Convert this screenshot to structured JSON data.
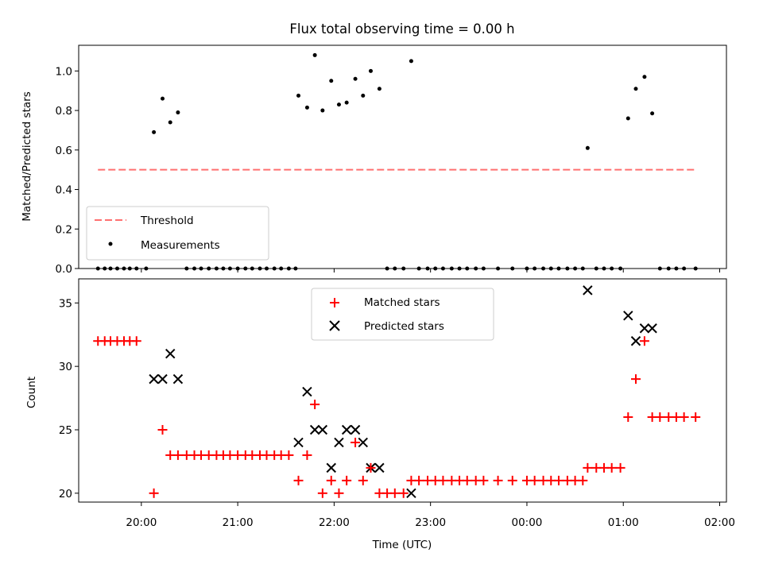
{
  "figure": {
    "title": "Flux total observing time = 0.00 h"
  },
  "chart_data": [
    {
      "type": "scatter",
      "ylabel": "Matched/Predicted stars",
      "xlim_hours": [
        19.35,
        26.07
      ],
      "ylim": [
        0,
        1.13
      ],
      "yticks": [
        "0.0",
        "0.2",
        "0.4",
        "0.6",
        "0.8",
        "1.0"
      ],
      "grid": false,
      "legend_position": "lower-left",
      "threshold": {
        "name": "Threshold",
        "color": "#ff7070",
        "x": [
          19.55,
          25.75
        ],
        "y": 0.5
      },
      "measurements": {
        "name": "Measurements",
        "color": "#000000",
        "x": [
          19.55,
          19.62,
          19.68,
          19.75,
          19.82,
          19.88,
          19.95,
          20.05,
          20.13,
          20.22,
          20.3,
          20.38,
          20.47,
          20.55,
          20.62,
          20.7,
          20.78,
          20.85,
          20.92,
          21.0,
          21.08,
          21.15,
          21.23,
          21.3,
          21.38,
          21.45,
          21.53,
          21.6,
          21.63,
          21.72,
          21.8,
          21.88,
          21.97,
          22.05,
          22.13,
          22.22,
          22.3,
          22.38,
          22.47,
          22.55,
          22.63,
          22.72,
          22.8,
          22.88,
          22.97,
          23.05,
          23.13,
          23.22,
          23.3,
          23.38,
          23.47,
          23.55,
          23.7,
          23.85,
          24.0,
          24.08,
          24.17,
          24.25,
          24.33,
          24.42,
          24.5,
          24.58,
          24.63,
          24.72,
          24.8,
          24.88,
          24.97,
          25.05,
          25.13,
          25.22,
          25.3,
          25.38,
          25.47,
          25.55,
          25.63,
          25.75
        ],
        "y": [
          0,
          0,
          0,
          0,
          0,
          0,
          0,
          0,
          0.69,
          0.86,
          0.74,
          0.79,
          0,
          0,
          0,
          0,
          0,
          0,
          0,
          0,
          0,
          0,
          0,
          0,
          0,
          0,
          0,
          0,
          0.875,
          0.815,
          1.08,
          0.8,
          0.95,
          0.83,
          0.84,
          0.96,
          0.875,
          1.0,
          0.91,
          0,
          0,
          0,
          1.05,
          0,
          0,
          0,
          0,
          0,
          0,
          0,
          0,
          0,
          0,
          0,
          0,
          0,
          0,
          0,
          0,
          0,
          0,
          0,
          0.61,
          0,
          0,
          0,
          0,
          0.76,
          0.91,
          0.97,
          0.785,
          0,
          0,
          0,
          0,
          0
        ]
      }
    },
    {
      "type": "scatter",
      "ylabel": "Count",
      "xlabel": "Time (UTC)",
      "xlim_hours": [
        19.35,
        26.07
      ],
      "ylim": [
        19.3,
        36.9
      ],
      "yticks": [
        "20",
        "25",
        "30",
        "35"
      ],
      "xticks_hours": [
        20,
        21,
        22,
        23,
        24,
        25,
        26
      ],
      "xticks": [
        "20:00",
        "21:00",
        "22:00",
        "23:00",
        "00:00",
        "01:00",
        "02:00"
      ],
      "grid": false,
      "legend_position": "upper-center",
      "matched": {
        "name": "Matched stars",
        "color": "#ff0000",
        "x": [
          19.55,
          19.62,
          19.68,
          19.75,
          19.82,
          19.88,
          19.95,
          20.13,
          20.22,
          20.3,
          20.38,
          20.47,
          20.55,
          20.62,
          20.7,
          20.78,
          20.85,
          20.92,
          21.0,
          21.08,
          21.15,
          21.23,
          21.3,
          21.38,
          21.45,
          21.53,
          21.63,
          21.72,
          21.8,
          21.88,
          21.97,
          22.05,
          22.13,
          22.22,
          22.3,
          22.38,
          22.47,
          22.55,
          22.63,
          22.72,
          22.8,
          22.88,
          22.97,
          23.05,
          23.13,
          23.22,
          23.3,
          23.38,
          23.47,
          23.55,
          23.7,
          23.85,
          24.0,
          24.08,
          24.17,
          24.25,
          24.33,
          24.42,
          24.5,
          24.58,
          24.63,
          24.72,
          24.8,
          24.88,
          24.97,
          25.05,
          25.13,
          25.22,
          25.3,
          25.38,
          25.47,
          25.55,
          25.63,
          25.75
        ],
        "y": [
          32,
          32,
          32,
          32,
          32,
          32,
          32,
          20,
          25,
          23,
          23,
          23,
          23,
          23,
          23,
          23,
          23,
          23,
          23,
          23,
          23,
          23,
          23,
          23,
          23,
          23,
          21,
          23,
          27,
          20,
          21,
          20,
          21,
          24,
          21,
          22,
          20,
          20,
          20,
          20,
          21,
          21,
          21,
          21,
          21,
          21,
          21,
          21,
          21,
          21,
          21,
          21,
          21,
          21,
          21,
          21,
          21,
          21,
          21,
          21,
          22,
          22,
          22,
          22,
          22,
          26,
          29,
          32,
          26,
          26,
          26,
          26,
          26,
          26
        ]
      },
      "predicted": {
        "name": "Predicted stars",
        "color": "#000000",
        "x": [
          20.13,
          20.22,
          20.3,
          20.38,
          21.63,
          21.72,
          21.8,
          21.88,
          21.97,
          22.05,
          22.13,
          22.22,
          22.3,
          22.38,
          22.47,
          22.8,
          24.63,
          25.05,
          25.13,
          25.22,
          25.3
        ],
        "y": [
          29,
          29,
          31,
          29,
          24,
          28,
          25,
          25,
          22,
          24,
          25,
          25,
          24,
          22,
          22,
          20,
          36,
          34,
          32,
          33,
          33
        ]
      }
    }
  ]
}
